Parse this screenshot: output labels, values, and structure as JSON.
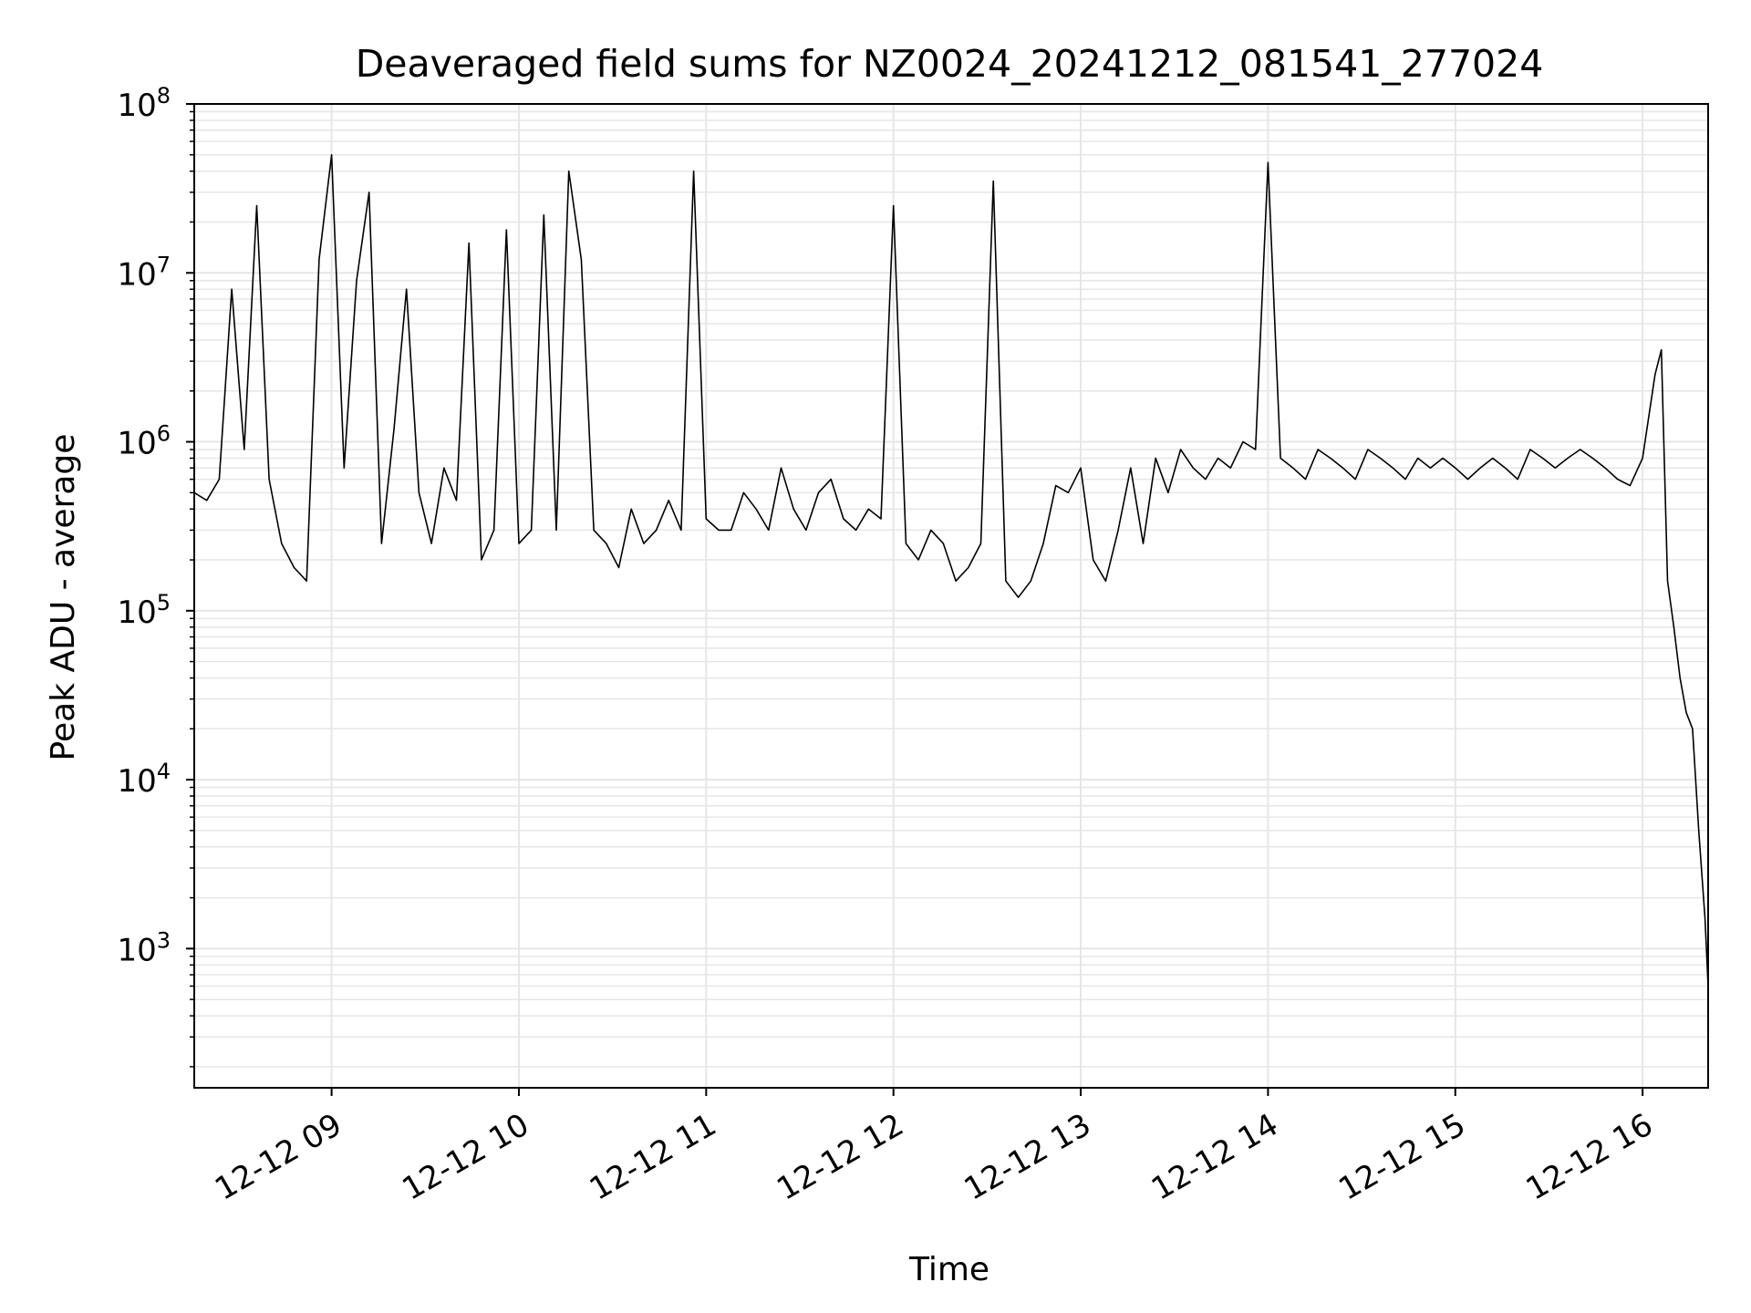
{
  "chart_data": {
    "type": "line",
    "title": "Deaveraged field sums for NZ0024_20241212_081541_277024",
    "xlabel": "Time",
    "ylabel": "Peak ADU - average",
    "yscale": "log",
    "ylim": [
      150,
      100000000
    ],
    "xlim": [
      "2024-12-12 08:16",
      "2024-12-12 16:21"
    ],
    "grid": true,
    "line_color": "#000000",
    "grid_color": "#e6e6e6",
    "x_ticks": [
      {
        "value": "2024-12-12 09:00",
        "label": "12-12 09"
      },
      {
        "value": "2024-12-12 10:00",
        "label": "12-12 10"
      },
      {
        "value": "2024-12-12 11:00",
        "label": "12-12 11"
      },
      {
        "value": "2024-12-12 12:00",
        "label": "12-12 12"
      },
      {
        "value": "2024-12-12 13:00",
        "label": "12-12 13"
      },
      {
        "value": "2024-12-12 14:00",
        "label": "12-12 14"
      },
      {
        "value": "2024-12-12 15:00",
        "label": "12-12 15"
      },
      {
        "value": "2024-12-12 16:00",
        "label": "12-12 16"
      }
    ],
    "y_ticks": [
      {
        "value": 1000,
        "mantissa": "10",
        "exp": "3"
      },
      {
        "value": 10000,
        "mantissa": "10",
        "exp": "4"
      },
      {
        "value": 100000,
        "mantissa": "10",
        "exp": "5"
      },
      {
        "value": 1000000,
        "mantissa": "10",
        "exp": "6"
      },
      {
        "value": 10000000,
        "mantissa": "10",
        "exp": "7"
      },
      {
        "value": 100000000,
        "mantissa": "10",
        "exp": "8"
      }
    ],
    "series": [
      {
        "x": [
          "2024-12-12 08:16",
          "2024-12-12 08:20",
          "2024-12-12 08:24",
          "2024-12-12 08:28",
          "2024-12-12 08:32",
          "2024-12-12 08:36",
          "2024-12-12 08:40",
          "2024-12-12 08:44",
          "2024-12-12 08:48",
          "2024-12-12 08:52",
          "2024-12-12 08:56",
          "2024-12-12 09:00",
          "2024-12-12 09:04",
          "2024-12-12 09:08",
          "2024-12-12 09:12",
          "2024-12-12 09:16",
          "2024-12-12 09:20",
          "2024-12-12 09:24",
          "2024-12-12 09:28",
          "2024-12-12 09:32",
          "2024-12-12 09:36",
          "2024-12-12 09:40",
          "2024-12-12 09:44",
          "2024-12-12 09:48",
          "2024-12-12 09:52",
          "2024-12-12 09:56",
          "2024-12-12 10:00",
          "2024-12-12 10:04",
          "2024-12-12 10:08",
          "2024-12-12 10:12",
          "2024-12-12 10:16",
          "2024-12-12 10:20",
          "2024-12-12 10:24",
          "2024-12-12 10:28",
          "2024-12-12 10:32",
          "2024-12-12 10:36",
          "2024-12-12 10:40",
          "2024-12-12 10:44",
          "2024-12-12 10:48",
          "2024-12-12 10:52",
          "2024-12-12 10:56",
          "2024-12-12 11:00",
          "2024-12-12 11:04",
          "2024-12-12 11:08",
          "2024-12-12 11:12",
          "2024-12-12 11:16",
          "2024-12-12 11:20",
          "2024-12-12 11:24",
          "2024-12-12 11:28",
          "2024-12-12 11:32",
          "2024-12-12 11:36",
          "2024-12-12 11:40",
          "2024-12-12 11:44",
          "2024-12-12 11:48",
          "2024-12-12 11:52",
          "2024-12-12 11:56",
          "2024-12-12 12:00",
          "2024-12-12 12:04",
          "2024-12-12 12:08",
          "2024-12-12 12:12",
          "2024-12-12 12:16",
          "2024-12-12 12:20",
          "2024-12-12 12:24",
          "2024-12-12 12:28",
          "2024-12-12 12:32",
          "2024-12-12 12:36",
          "2024-12-12 12:40",
          "2024-12-12 12:44",
          "2024-12-12 12:48",
          "2024-12-12 12:52",
          "2024-12-12 12:56",
          "2024-12-12 13:00",
          "2024-12-12 13:04",
          "2024-12-12 13:08",
          "2024-12-12 13:12",
          "2024-12-12 13:16",
          "2024-12-12 13:20",
          "2024-12-12 13:24",
          "2024-12-12 13:28",
          "2024-12-12 13:32",
          "2024-12-12 13:36",
          "2024-12-12 13:40",
          "2024-12-12 13:44",
          "2024-12-12 13:48",
          "2024-12-12 13:52",
          "2024-12-12 13:56",
          "2024-12-12 14:00",
          "2024-12-12 14:04",
          "2024-12-12 14:08",
          "2024-12-12 14:12",
          "2024-12-12 14:16",
          "2024-12-12 14:20",
          "2024-12-12 14:24",
          "2024-12-12 14:28",
          "2024-12-12 14:32",
          "2024-12-12 14:36",
          "2024-12-12 14:40",
          "2024-12-12 14:44",
          "2024-12-12 14:48",
          "2024-12-12 14:52",
          "2024-12-12 14:56",
          "2024-12-12 15:00",
          "2024-12-12 15:04",
          "2024-12-12 15:08",
          "2024-12-12 15:12",
          "2024-12-12 15:16",
          "2024-12-12 15:20",
          "2024-12-12 15:24",
          "2024-12-12 15:28",
          "2024-12-12 15:32",
          "2024-12-12 15:36",
          "2024-12-12 15:40",
          "2024-12-12 15:44",
          "2024-12-12 15:48",
          "2024-12-12 15:52",
          "2024-12-12 15:56",
          "2024-12-12 16:00",
          "2024-12-12 16:04",
          "2024-12-12 16:06",
          "2024-12-12 16:08",
          "2024-12-12 16:10",
          "2024-12-12 16:12",
          "2024-12-12 16:14",
          "2024-12-12 16:16",
          "2024-12-12 16:18",
          "2024-12-12 16:20",
          "2024-12-12 16:21"
        ],
        "y": [
          500000,
          450000,
          600000,
          8000000,
          900000,
          25000000,
          600000,
          250000,
          180000,
          150000,
          12000000,
          50000000,
          700000,
          9000000,
          30000000,
          250000,
          1200000,
          8000000,
          500000,
          250000,
          700000,
          450000,
          15000000,
          200000,
          300000,
          18000000,
          250000,
          300000,
          22000000,
          300000,
          40000000,
          12000000,
          300000,
          250000,
          180000,
          400000,
          250000,
          300000,
          450000,
          300000,
          40000000,
          350000,
          300000,
          300000,
          500000,
          400000,
          300000,
          700000,
          400000,
          300000,
          500000,
          600000,
          350000,
          300000,
          400000,
          350000,
          25000000,
          250000,
          200000,
          300000,
          250000,
          150000,
          180000,
          250000,
          35000000,
          150000,
          120000,
          150000,
          250000,
          550000,
          500000,
          700000,
          200000,
          150000,
          300000,
          700000,
          250000,
          800000,
          500000,
          900000,
          700000,
          600000,
          800000,
          700000,
          1000000,
          900000,
          45000000,
          800000,
          700000,
          600000,
          900000,
          800000,
          700000,
          600000,
          900000,
          800000,
          700000,
          600000,
          800000,
          700000,
          800000,
          700000,
          600000,
          700000,
          800000,
          700000,
          600000,
          900000,
          800000,
          700000,
          800000,
          900000,
          800000,
          700000,
          600000,
          550000,
          800000,
          2500000,
          3500000,
          150000,
          80000,
          40000,
          25000,
          20000,
          5000,
          1500,
          600
        ]
      }
    ]
  }
}
